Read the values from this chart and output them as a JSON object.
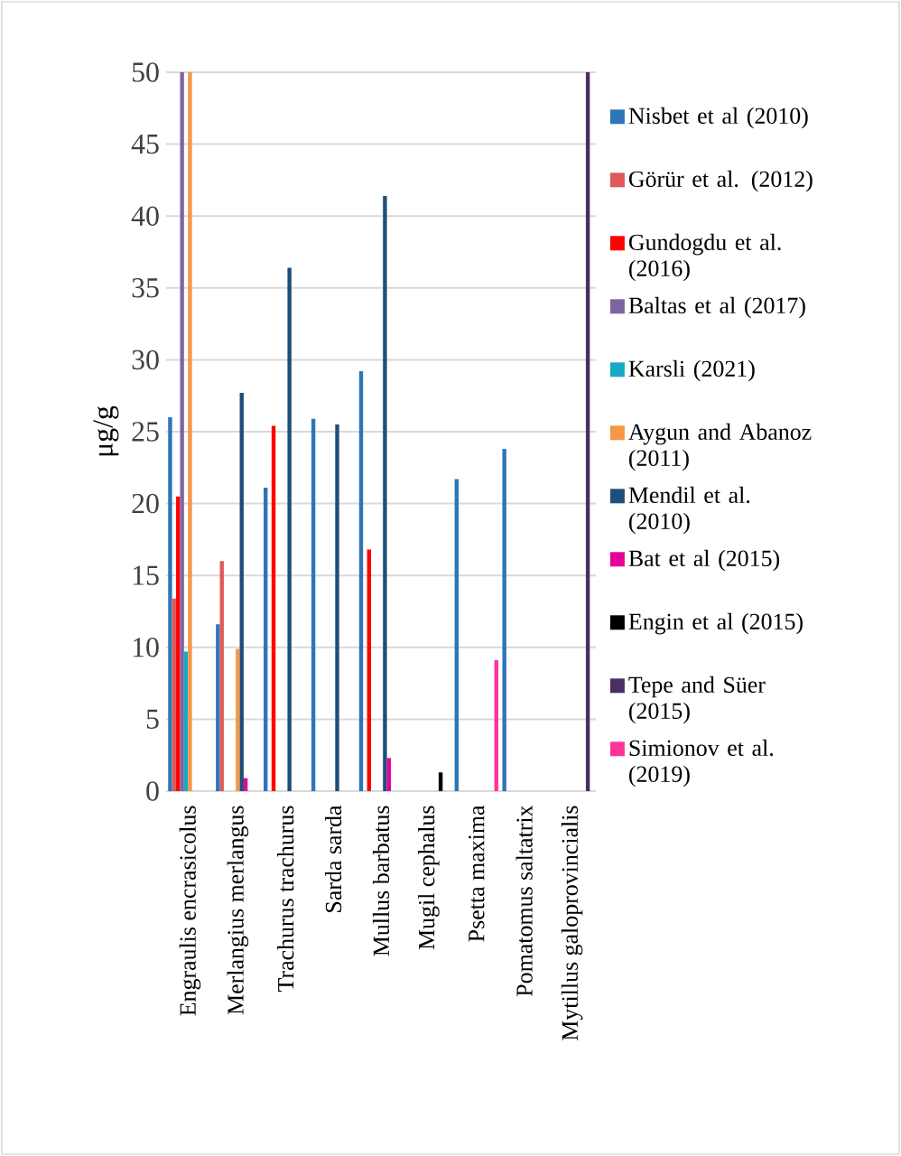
{
  "chart_data": {
    "type": "bar",
    "ylabel": "μg/g",
    "categories": [
      "Engraulis encrasicolus",
      "Merlangius merlangus",
      "Trachurus trachurus",
      "Sarda sarda",
      "Mullus barbatus",
      "Mugil cephalus",
      "Psetta maxima",
      "Pomatomus saltatrix",
      "Mytillus galoprovincialis"
    ],
    "series": [
      {
        "name": "Nisbet et al (2010)",
        "color": "#2e75b6",
        "values": [
          26.0,
          11.6,
          21.1,
          25.9,
          29.2,
          null,
          21.7,
          23.8,
          null
        ]
      },
      {
        "name": "Görür et al. (2012)",
        "color": "#e05a5a",
        "values": [
          13.4,
          16.0,
          null,
          null,
          null,
          null,
          null,
          null,
          null
        ]
      },
      {
        "name": "Gundogdu et al. (2016)",
        "color": "#ff0000",
        "values": [
          20.5,
          null,
          25.4,
          null,
          16.8,
          null,
          null,
          null,
          null
        ]
      },
      {
        "name": "Baltas et al (2017)",
        "color": "#8064a2",
        "values": [
          50,
          null,
          null,
          null,
          null,
          null,
          null,
          null,
          null
        ]
      },
      {
        "name": "Karsli (2021)",
        "color": "#17a9c6",
        "values": [
          9.7,
          null,
          null,
          null,
          null,
          null,
          null,
          null,
          null
        ]
      },
      {
        "name": "Aygun and Abanoz (2011)",
        "color": "#f79646",
        "values": [
          50,
          9.9,
          null,
          null,
          null,
          null,
          null,
          null,
          null
        ]
      },
      {
        "name": "Mendil et al. (2010)",
        "color": "#1f4e79",
        "values": [
          null,
          27.7,
          36.4,
          25.5,
          41.4,
          null,
          null,
          null,
          null
        ]
      },
      {
        "name": "Bat et al (2015)",
        "color": "#e6009a",
        "values": [
          null,
          0.9,
          null,
          null,
          2.3,
          null,
          null,
          null,
          null
        ]
      },
      {
        "name": "Engin et al (2015)",
        "color": "#000000",
        "values": [
          null,
          null,
          null,
          null,
          null,
          1.3,
          null,
          null,
          null
        ]
      },
      {
        "name": "Tepe and Süer (2015)",
        "color": "#4b2e63",
        "values": [
          null,
          null,
          null,
          null,
          null,
          null,
          null,
          null,
          50
        ]
      },
      {
        "name": "Simionov et al. (2019)",
        "color": "#ff3399",
        "values": [
          null,
          null,
          null,
          null,
          null,
          null,
          9.1,
          null,
          null
        ]
      }
    ],
    "ylim": [
      0,
      50
    ],
    "yticks": [
      0,
      5,
      10,
      15,
      20,
      25,
      30,
      35,
      40,
      45,
      50
    ],
    "grid": "y",
    "legend": "right"
  }
}
